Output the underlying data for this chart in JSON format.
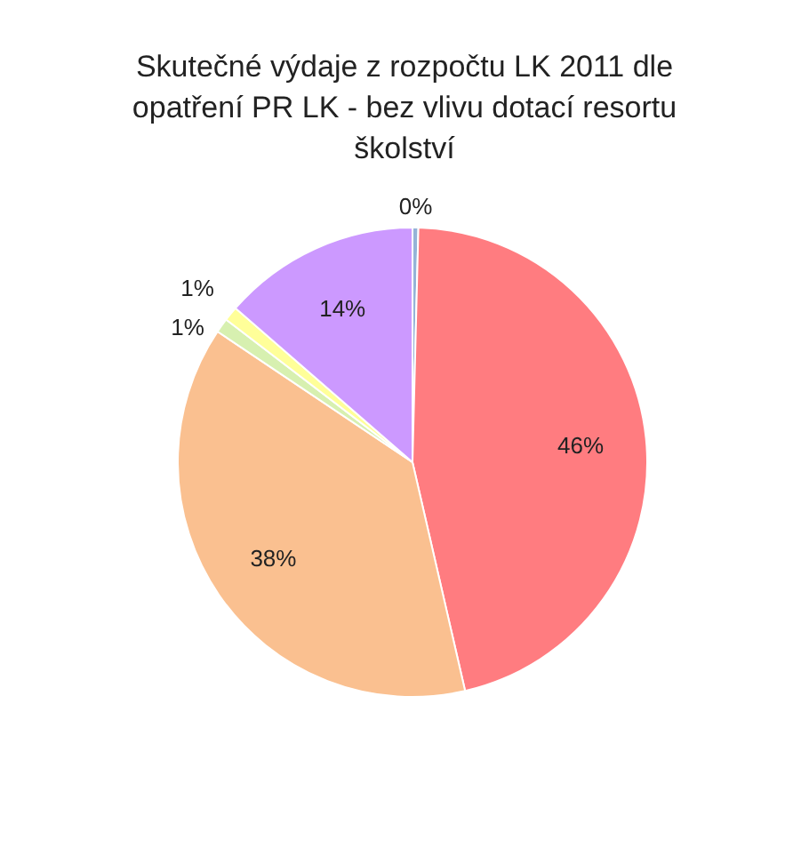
{
  "chart_data": {
    "type": "pie",
    "title": "Skutečné výdaje z rozpočtu LK 2011 dle opatření PR LK - bez vlivu dotací resortu školství",
    "categories": [
      null,
      null,
      null,
      null,
      null,
      null
    ],
    "values": [
      0.4,
      46,
      38,
      1,
      1,
      13.6
    ],
    "value_labels": [
      "0%",
      "46%",
      "38%",
      "1%",
      "1%",
      "14%"
    ],
    "colors": [
      "#95b3d7",
      "#ff7c80",
      "#fac090",
      "#d7f0b0",
      "#ffff99",
      "#cc99ff"
    ]
  }
}
